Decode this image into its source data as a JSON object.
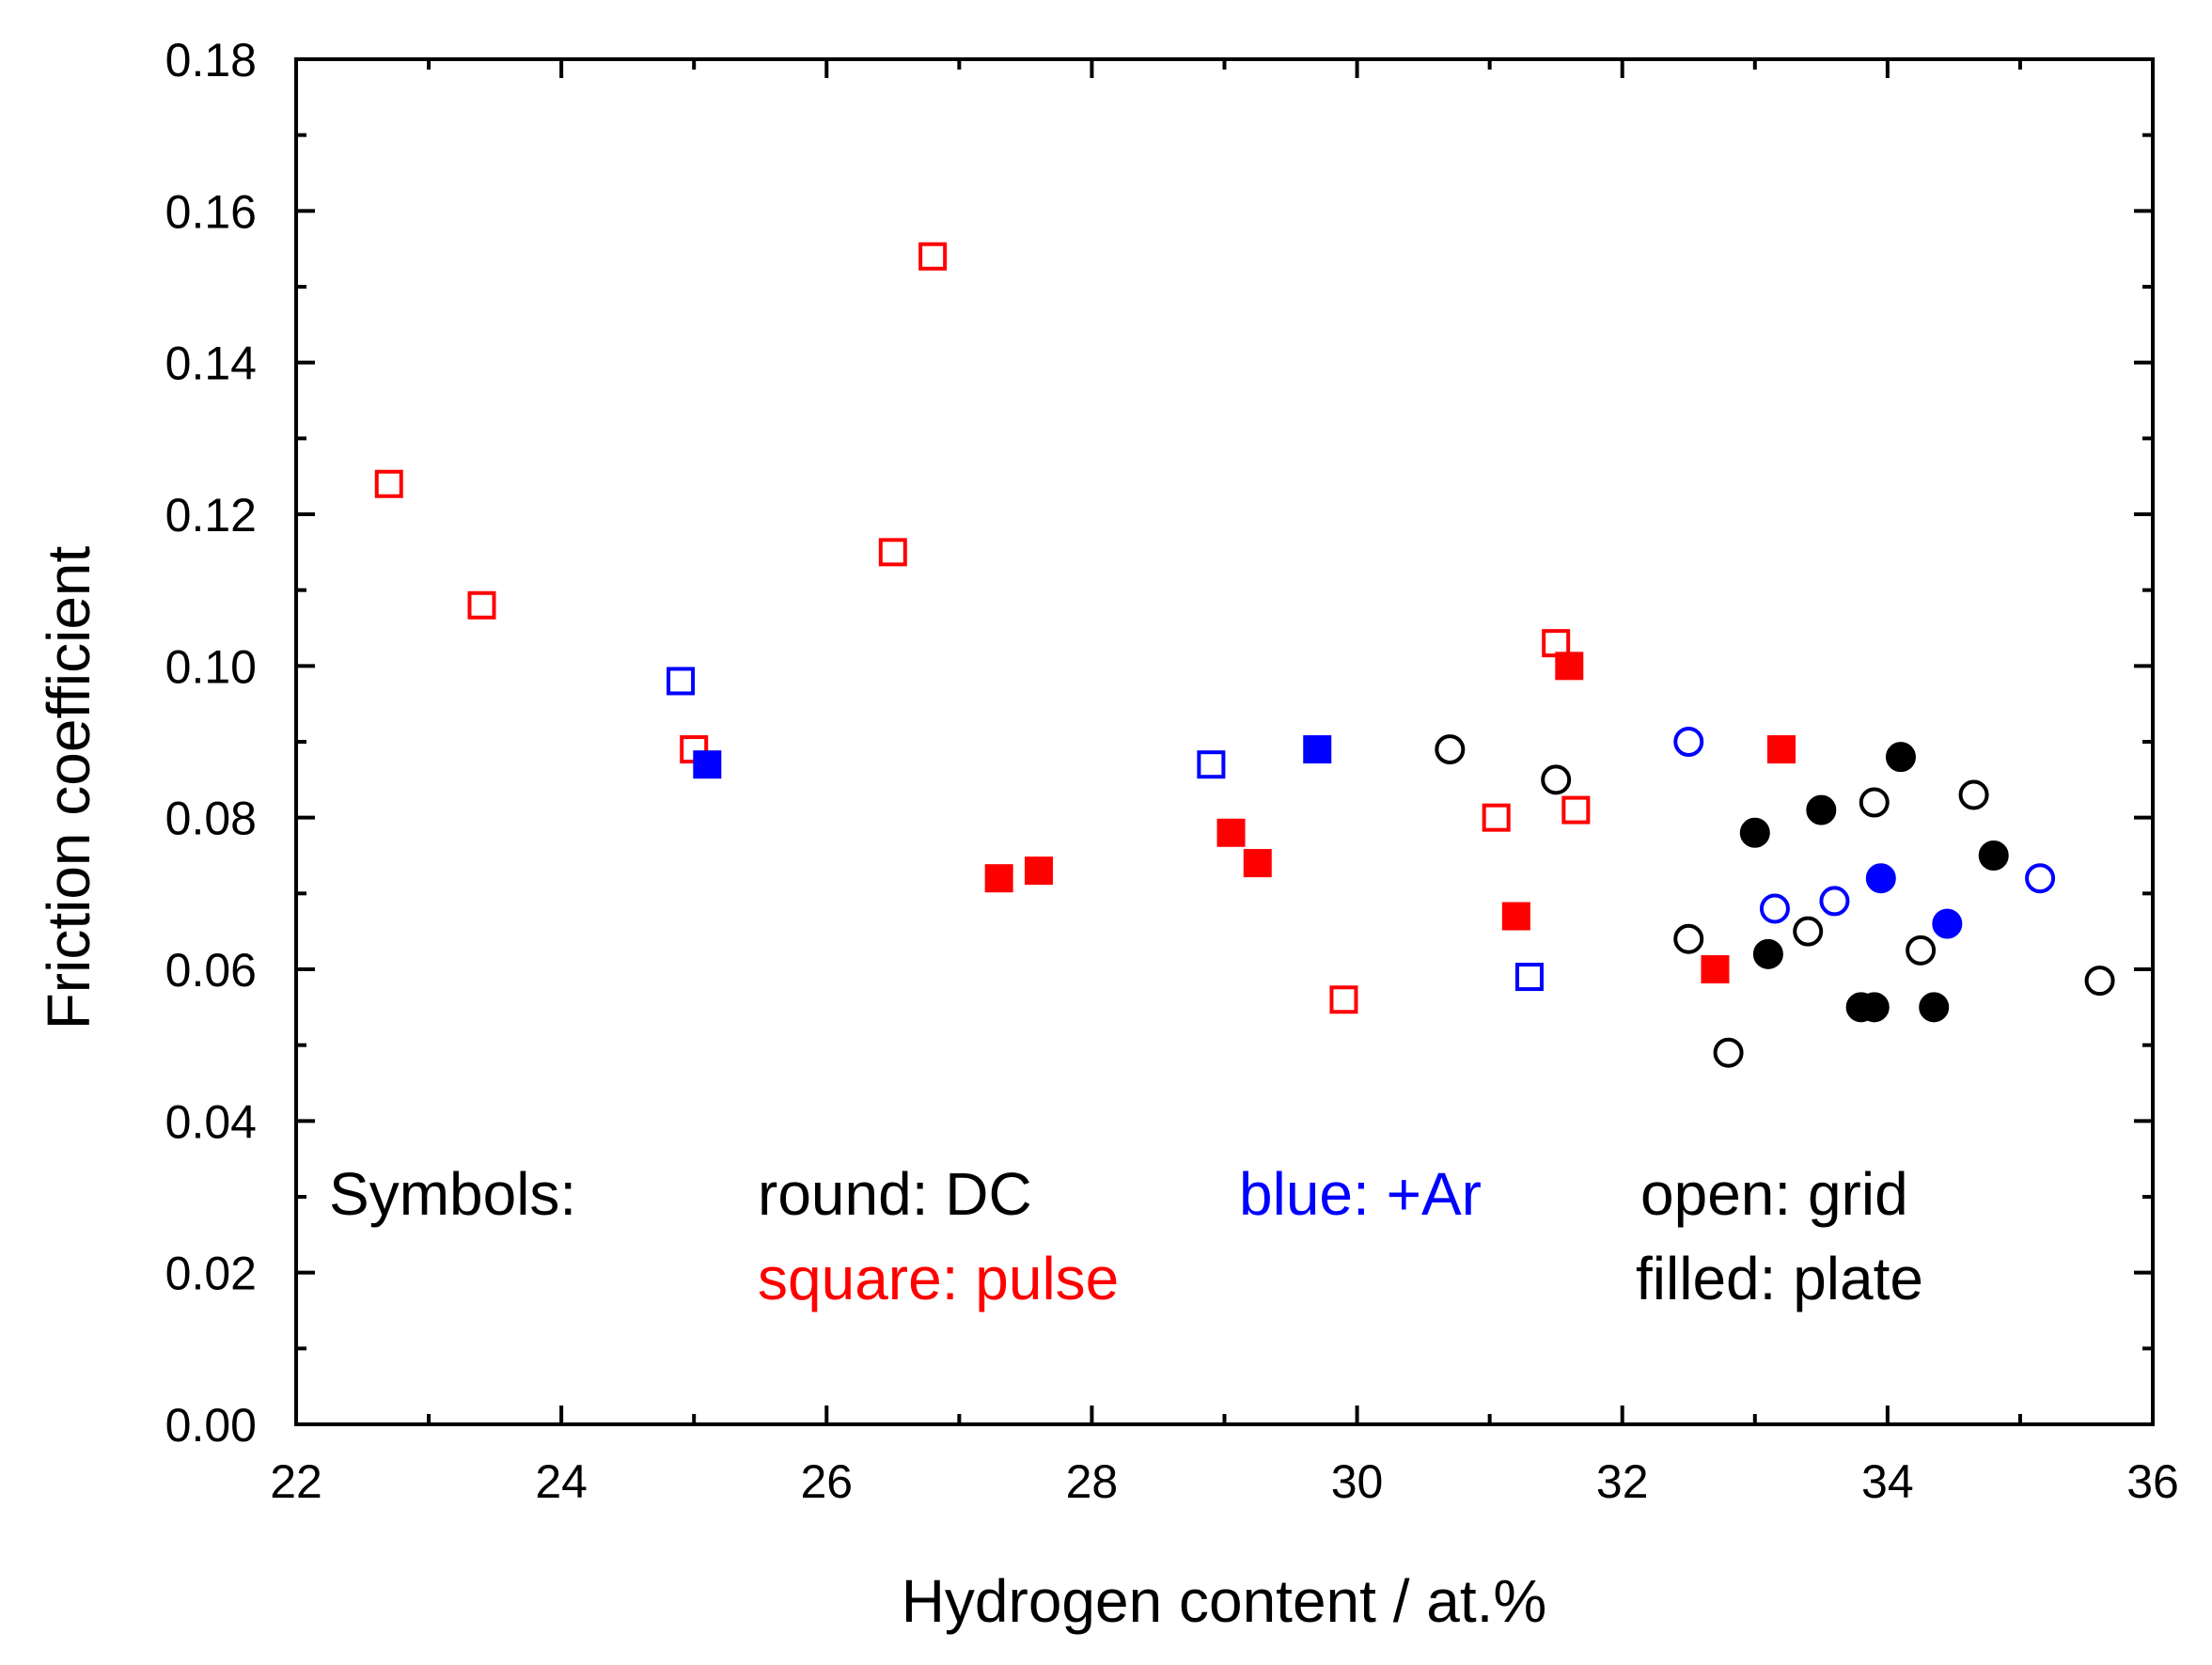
{
  "chart_data": {
    "type": "scatter",
    "title": "",
    "xlabel": "Hydrogen content / at.%",
    "ylabel": "Friction coefficient",
    "xlim": [
      22,
      36
    ],
    "ylim": [
      0,
      0.18
    ],
    "xticks": [
      "22",
      "24",
      "26",
      "28",
      "30",
      "32",
      "34",
      "36"
    ],
    "yticks": [
      "0.00",
      "0.02",
      "0.04",
      "0.06",
      "0.08",
      "0.10",
      "0.12",
      "0.14",
      "0.16",
      "0.18"
    ],
    "grid": false,
    "colors": {
      "pulse": "#ff0000",
      "ar": "#0000ff",
      "dc": "#000000"
    },
    "series": [
      {
        "name": "square pulse open (grid)",
        "shape": "square",
        "fill": "open",
        "color": "#ff0000",
        "points": [
          [
            22.7,
            0.124
          ],
          [
            23.4,
            0.108
          ],
          [
            25.0,
            0.089
          ],
          [
            26.5,
            0.115
          ],
          [
            26.8,
            0.154
          ],
          [
            29.9,
            0.056
          ],
          [
            31.05,
            0.08
          ],
          [
            31.5,
            0.103
          ],
          [
            31.65,
            0.081
          ]
        ]
      },
      {
        "name": "square pulse filled (plate)",
        "shape": "square",
        "fill": "filled",
        "color": "#ff0000",
        "points": [
          [
            27.3,
            0.072
          ],
          [
            27.6,
            0.073
          ],
          [
            29.05,
            0.078
          ],
          [
            29.25,
            0.074
          ],
          [
            31.2,
            0.067
          ],
          [
            31.6,
            0.1
          ],
          [
            32.7,
            0.06
          ],
          [
            33.2,
            0.089
          ]
        ]
      },
      {
        "name": "square pulse +Ar open (grid)",
        "shape": "square",
        "fill": "open",
        "color": "#0000ff",
        "points": [
          [
            24.9,
            0.098
          ],
          [
            28.9,
            0.087
          ],
          [
            31.3,
            0.059
          ]
        ]
      },
      {
        "name": "square pulse +Ar filled (plate)",
        "shape": "square",
        "fill": "filled",
        "color": "#0000ff",
        "points": [
          [
            25.1,
            0.087
          ],
          [
            29.7,
            0.089
          ]
        ]
      },
      {
        "name": "round DC open (grid)",
        "shape": "circle",
        "fill": "open",
        "color": "#000000",
        "points": [
          [
            30.7,
            0.089
          ],
          [
            31.5,
            0.085
          ],
          [
            32.5,
            0.064
          ],
          [
            32.8,
            0.049
          ],
          [
            33.4,
            0.065
          ],
          [
            33.9,
            0.082
          ],
          [
            34.25,
            0.0625
          ],
          [
            34.65,
            0.083
          ],
          [
            35.6,
            0.0585
          ]
        ]
      },
      {
        "name": "round DC filled (plate)",
        "shape": "circle",
        "fill": "filled",
        "color": "#000000",
        "points": [
          [
            33.0,
            0.078
          ],
          [
            33.1,
            0.062
          ],
          [
            33.5,
            0.081
          ],
          [
            33.8,
            0.055
          ],
          [
            33.9,
            0.055
          ],
          [
            34.1,
            0.088
          ],
          [
            34.35,
            0.055
          ],
          [
            34.8,
            0.075
          ]
        ]
      },
      {
        "name": "round DC +Ar open (grid)",
        "shape": "circle",
        "fill": "open",
        "color": "#0000ff",
        "points": [
          [
            32.5,
            0.09
          ],
          [
            33.15,
            0.068
          ],
          [
            33.6,
            0.069
          ],
          [
            35.15,
            0.072
          ]
        ]
      },
      {
        "name": "round DC +Ar filled (plate)",
        "shape": "circle",
        "fill": "filled",
        "color": "#0000ff",
        "points": [
          [
            33.95,
            0.072
          ],
          [
            34.45,
            0.066
          ]
        ]
      }
    ],
    "annotations": {
      "symbols": "Symbols:",
      "round": "round: DC",
      "square": "square: pulse",
      "blue": "blue: +Ar",
      "open": "open: grid",
      "filled": "filled: plate"
    }
  }
}
